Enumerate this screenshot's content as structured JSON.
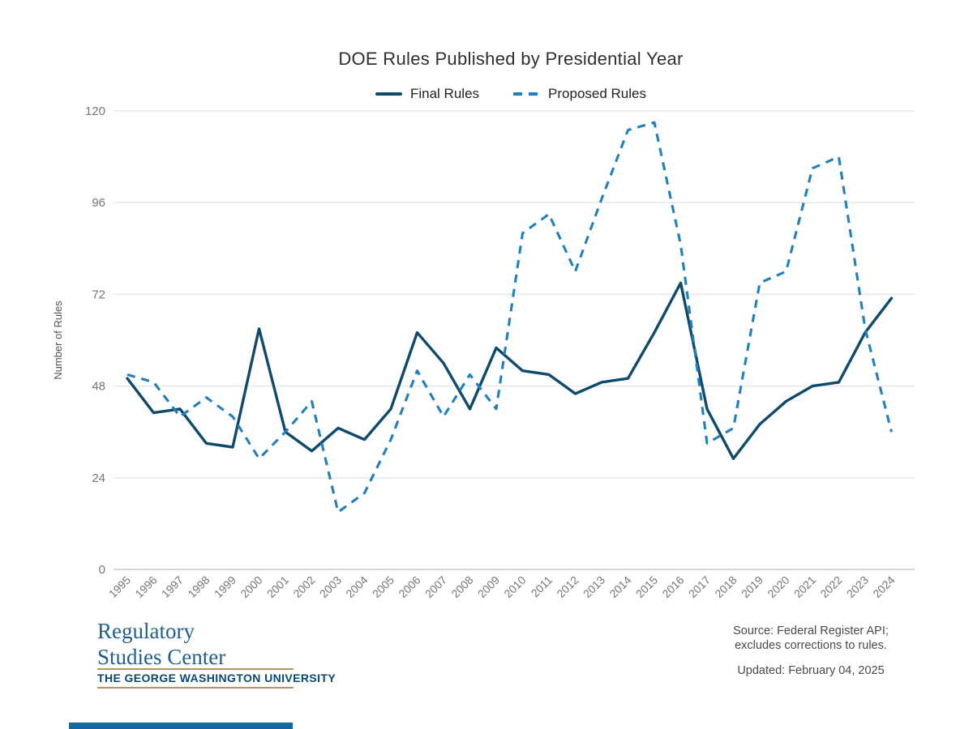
{
  "chart": {
    "title": "DOE Rules Published by Presidential Year"
  },
  "chart_data": {
    "type": "line",
    "title": "DOE Rules Published by Presidential Year",
    "xlabel": "",
    "ylabel": "Number of Rules",
    "x": [
      "1995",
      "1996",
      "1997",
      "1998",
      "1999",
      "2000",
      "2001",
      "2002",
      "2003",
      "2004",
      "2005",
      "2006",
      "2007",
      "2008",
      "2009",
      "2010",
      "2011",
      "2012",
      "2013",
      "2014",
      "2015",
      "2016",
      "2017",
      "2018",
      "2019",
      "2020",
      "2021",
      "2022",
      "2023",
      "2024"
    ],
    "series": [
      {
        "name": "Final Rules",
        "style": "solid",
        "color": "#0d4a6b",
        "values": [
          50,
          41,
          42,
          33,
          32,
          63,
          36,
          31,
          37,
          34,
          42,
          62,
          54,
          42,
          58,
          52,
          51,
          46,
          49,
          50,
          62,
          75,
          42,
          29,
          38,
          44,
          48,
          49,
          62,
          71
        ]
      },
      {
        "name": "Proposed Rules",
        "style": "dashed",
        "color": "#2080bd",
        "values": [
          51,
          49,
          40,
          45,
          40,
          29,
          36,
          44,
          15,
          20,
          34,
          52,
          40,
          51,
          42,
          88,
          93,
          78,
          97,
          115,
          117,
          85,
          33,
          37,
          75,
          78,
          105,
          108,
          63,
          36
        ]
      }
    ],
    "ylim": [
      0,
      120
    ],
    "yticks": [
      0,
      24,
      48,
      72,
      96,
      120
    ],
    "grid": "horizontal",
    "legend_position": "top-center",
    "tick_color": "#777777",
    "grid_color": "#e6e6e6",
    "axis_color": "#c9c9c9"
  },
  "footer": {
    "logo_line1": "Regulatory",
    "logo_line2": "Studies Center",
    "university": "THE GEORGE WASHINGTON UNIVERSITY",
    "source_line1": "Source: Federal Register API;",
    "source_line2": "excludes corrections to rules.",
    "updated": "Updated: February 04, 2025",
    "accent_gold": "#b9975b",
    "accent_blue": "#1468a0"
  }
}
